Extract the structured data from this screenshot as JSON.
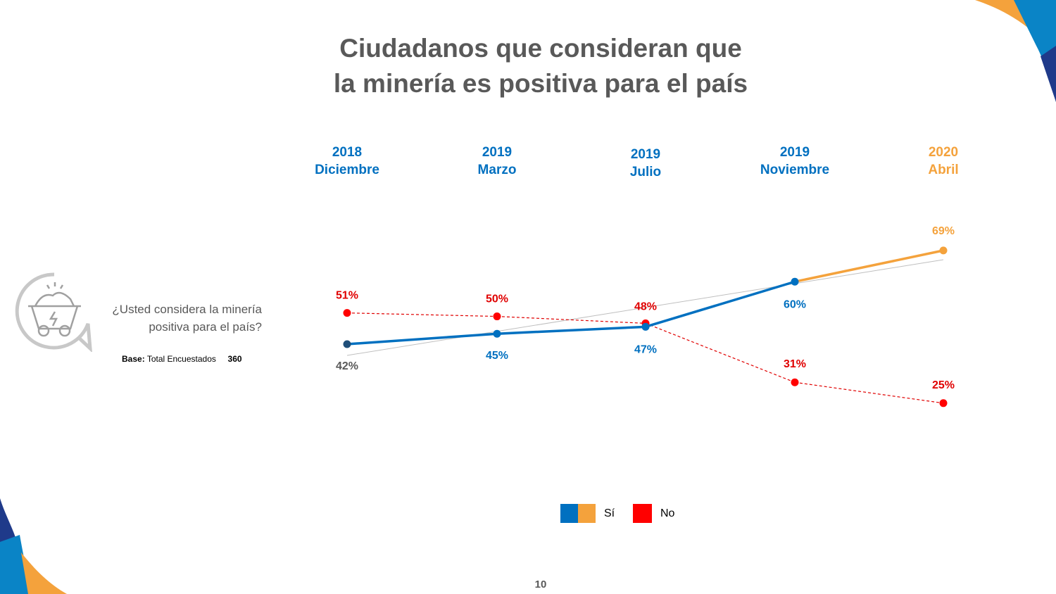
{
  "title": {
    "line1": "Ciudadanos que consideran que",
    "line2": "la minería es positiva para el país"
  },
  "question": {
    "line1": "¿Usted considera la minería",
    "line2": "positiva para el país?"
  },
  "base": {
    "label": "Base:",
    "text": "Total Encuestados",
    "value": "360"
  },
  "page_number": "10",
  "chart_data": {
    "type": "line",
    "categories": [
      {
        "year": "2018",
        "month": "Diciembre"
      },
      {
        "year": "2019",
        "month": "Marzo"
      },
      {
        "year": "2019",
        "month": "Julio"
      },
      {
        "year": "2019",
        "month": "Noviembre"
      },
      {
        "year": "2020",
        "month": "Abril"
      }
    ],
    "series": [
      {
        "name": "Sí",
        "values": [
          42,
          45,
          47,
          60,
          69
        ],
        "labels": [
          "42%",
          "45%",
          "47%",
          "60%",
          "69%"
        ],
        "color": "#0070C0",
        "highlight_color": "#F4A23C"
      },
      {
        "name": "No",
        "values": [
          51,
          50,
          48,
          31,
          25
        ],
        "labels": [
          "51%",
          "50%",
          "48%",
          "31%",
          "25%"
        ],
        "color": "#E00000",
        "style": "dashed"
      }
    ],
    "trendline": {
      "series": "Sí",
      "color": "#BFBFBF"
    },
    "legend": "bottom"
  },
  "colors": {
    "blue": "#0070C0",
    "orange": "#F4A23C",
    "red": "#FF0000",
    "dark_blue": "#1F3A8A"
  }
}
